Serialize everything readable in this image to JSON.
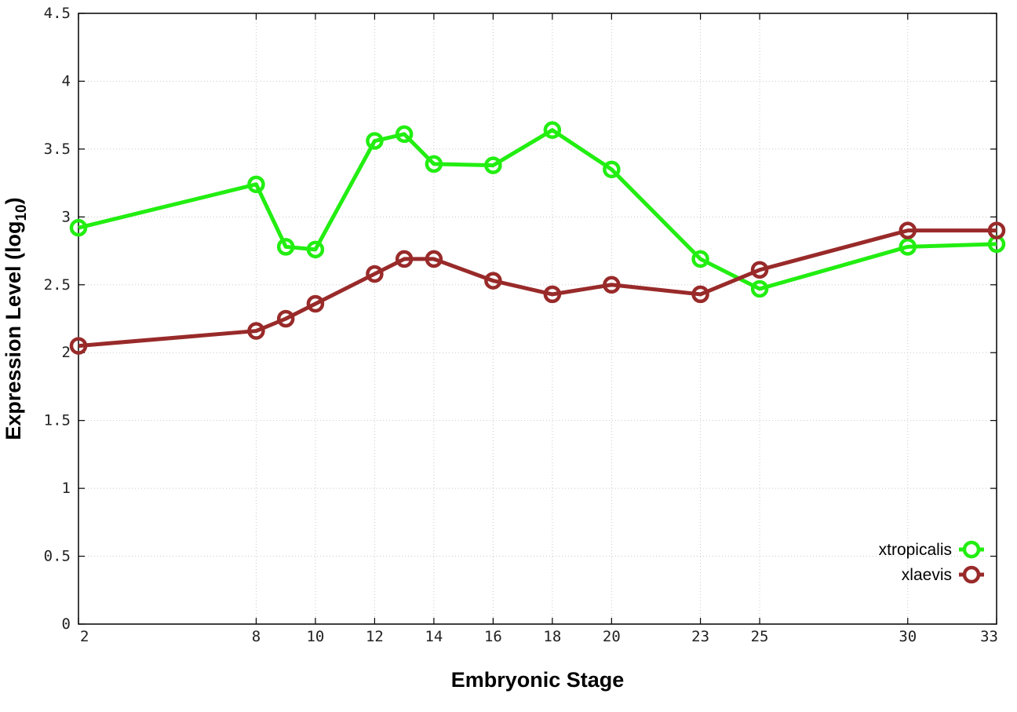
{
  "chart_data": {
    "type": "line",
    "xlabel": "Embryonic Stage",
    "ylabel_main": "Expression Level (log",
    "ylabel_sub": "10",
    "ylabel_close": ")",
    "ylim": [
      0,
      4.5
    ],
    "xlim": [
      2,
      33
    ],
    "grid": true,
    "legend_position": "bottom-right",
    "x_ticks": [
      2,
      8,
      10,
      12,
      14,
      16,
      18,
      20,
      23,
      25,
      30,
      33
    ],
    "y_ticks": [
      "0",
      "0.5",
      "1",
      "1.5",
      "2",
      "2.5",
      "3",
      "3.5",
      "4",
      "4.5"
    ],
    "x": [
      2,
      8,
      9,
      10,
      12,
      13,
      14,
      16,
      18,
      20,
      23,
      25,
      30,
      33
    ],
    "series": [
      {
        "name": "xtropicalis",
        "color": "#22ee11",
        "values": [
          2.92,
          3.24,
          2.78,
          2.76,
          3.56,
          3.61,
          3.39,
          3.38,
          3.64,
          3.35,
          2.69,
          2.47,
          2.78,
          2.8
        ]
      },
      {
        "name": "xlaevis",
        "color": "#992a2a",
        "values": [
          2.05,
          2.16,
          2.25,
          2.36,
          2.58,
          2.69,
          2.69,
          2.53,
          2.43,
          2.5,
          2.43,
          2.61,
          2.9,
          2.9
        ]
      }
    ]
  }
}
